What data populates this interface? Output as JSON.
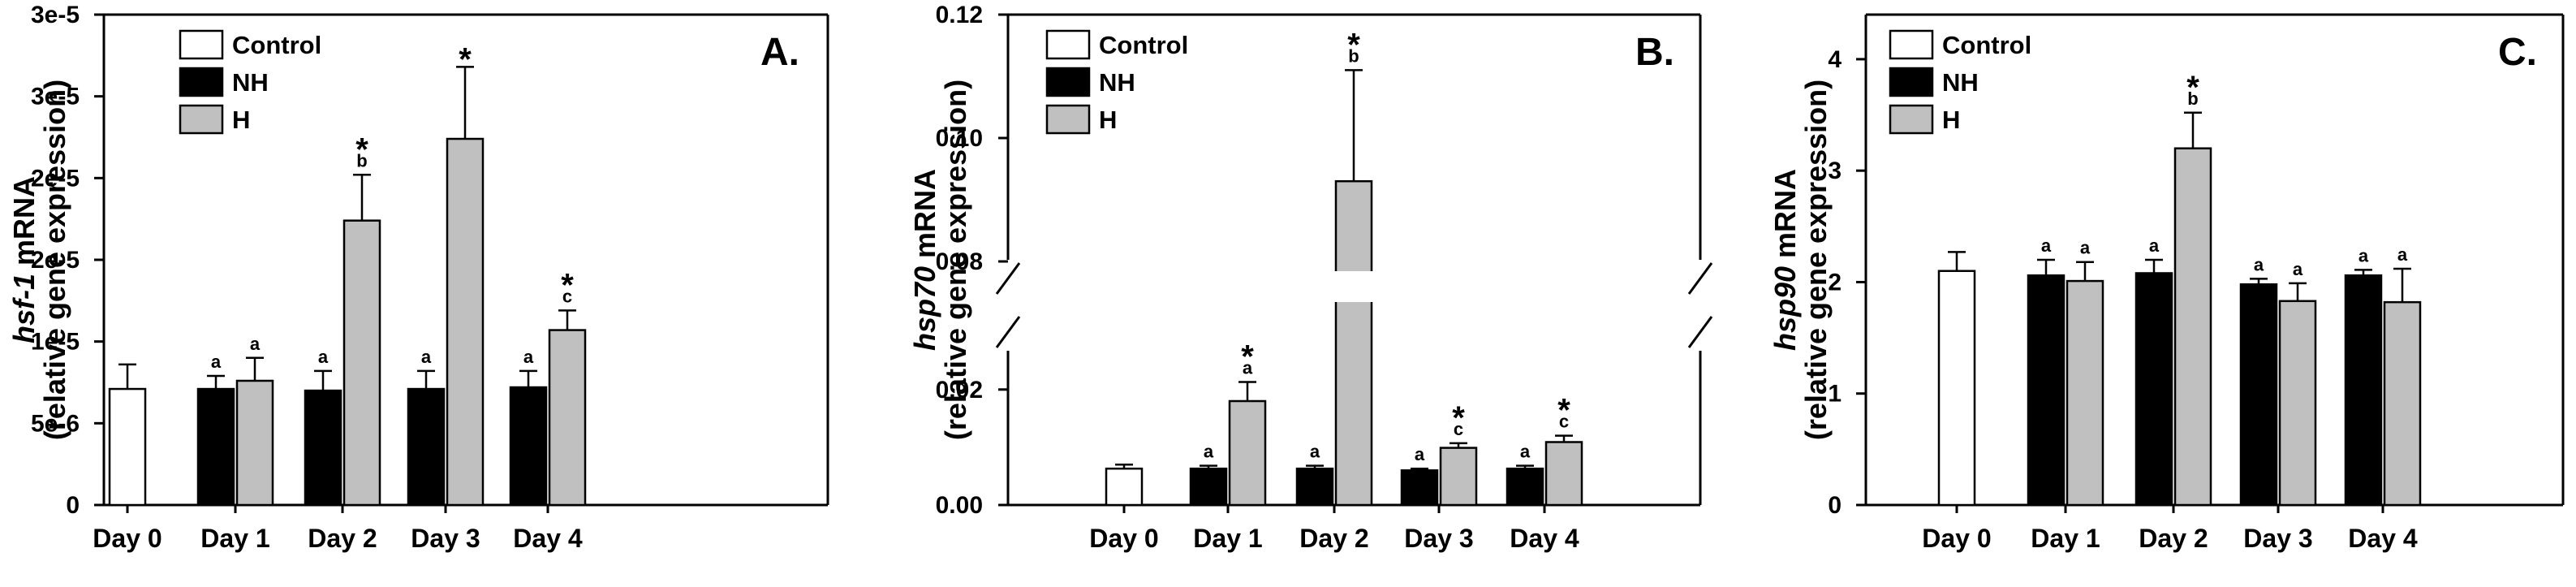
{
  "chart_data": [
    {
      "type": "bar",
      "panel_label": "A.",
      "ylabel_gene": "hsf-1",
      "ylabel_rest": " mRNA",
      "ylabel_line2": "(relative gene  expression)",
      "yticks": [
        {
          "value": 0,
          "label": "0"
        },
        {
          "value": 5e-06,
          "label": "5e-6"
        },
        {
          "value": 1e-05,
          "label": "1e-5"
        },
        {
          "value": 1.5e-05,
          "label": "2e-5"
        },
        {
          "value": 2e-05,
          "label": "2e-5"
        },
        {
          "value": 2.5e-05,
          "label": "3e-5"
        },
        {
          "value": 3e-05,
          "label": "3e-5"
        }
      ],
      "ylim": [
        0,
        3e-05
      ],
      "categories": [
        "Day 0",
        "Day 1",
        "Day 2",
        "Day 3",
        "Day 4"
      ],
      "legend": [
        "Control",
        "NH",
        "H"
      ],
      "series": [
        {
          "name": "Control",
          "values": [
            7.1e-06,
            null,
            null,
            null,
            null
          ],
          "errors": [
            1.5e-06,
            null,
            null,
            null,
            null
          ],
          "letters": [
            "",
            "",
            "",
            "",
            ""
          ],
          "stars": [
            false,
            false,
            false,
            false,
            false
          ]
        },
        {
          "name": "NH",
          "values": [
            null,
            7.1e-06,
            7e-06,
            7.1e-06,
            7.2e-06
          ],
          "errors": [
            null,
            8e-07,
            1.2e-06,
            1.1e-06,
            1e-06
          ],
          "letters": [
            "",
            "a",
            "a",
            "a",
            "a"
          ],
          "stars": [
            false,
            false,
            false,
            false,
            false
          ]
        },
        {
          "name": "H",
          "values": [
            null,
            7.6e-06,
            1.74e-05,
            2.24e-05,
            1.07e-05
          ],
          "errors": [
            null,
            1.4e-06,
            2.8e-06,
            4.4e-06,
            1.2e-06
          ],
          "letters": [
            "",
            "a",
            "b",
            "",
            "c"
          ],
          "stars": [
            false,
            false,
            true,
            true,
            true
          ]
        }
      ]
    },
    {
      "type": "bar",
      "panel_label": "B.",
      "ylabel_gene": "hsp70",
      "ylabel_rest": " mRNA",
      "ylabel_line2": "(relative gene  expression)",
      "broken_axis": true,
      "yticks": [
        {
          "value": 0,
          "label": "0.00"
        },
        {
          "value": 0.02,
          "label": "0.02"
        },
        {
          "value": 0.08,
          "label": "0.08"
        },
        {
          "value": 0.1,
          "label": "0.10"
        },
        {
          "value": 0.12,
          "label": "0.12"
        }
      ],
      "ylim_lower": [
        0,
        0.027
      ],
      "ylim_upper": [
        0.08,
        0.12
      ],
      "categories": [
        "Day 0",
        "Day 1",
        "Day 2",
        "Day 3",
        "Day 4"
      ],
      "legend": [
        "Control",
        "NH",
        "H"
      ],
      "series": [
        {
          "name": "Control",
          "values": [
            0.0063,
            null,
            null,
            null,
            null
          ],
          "errors": [
            0.0007,
            null,
            null,
            null,
            null
          ],
          "letters": [
            "",
            "",
            "",
            "",
            ""
          ],
          "stars": [
            false,
            false,
            false,
            false,
            false
          ]
        },
        {
          "name": "NH",
          "values": [
            null,
            0.0063,
            0.0063,
            0.006,
            0.0063
          ],
          "errors": [
            null,
            0.0005,
            0.0005,
            0.0003,
            0.0005
          ],
          "letters": [
            "",
            "a",
            "a",
            "a",
            "a"
          ],
          "stars": [
            false,
            false,
            false,
            false,
            false
          ]
        },
        {
          "name": "H",
          "values": [
            null,
            0.018,
            0.093,
            0.0099,
            0.0109
          ],
          "errors": [
            null,
            0.0033,
            0.018,
            0.0008,
            0.0011
          ],
          "letters": [
            "",
            "a",
            "b",
            "c",
            "c"
          ],
          "stars": [
            false,
            true,
            true,
            true,
            true
          ]
        }
      ]
    },
    {
      "type": "bar",
      "panel_label": "C.",
      "ylabel_gene": "hsp90",
      "ylabel_rest": " mRNA",
      "ylabel_line2": "(relative gene  expression)",
      "yticks": [
        {
          "value": 0,
          "label": "0"
        },
        {
          "value": 1,
          "label": "1"
        },
        {
          "value": 2,
          "label": "2"
        },
        {
          "value": 3,
          "label": "3"
        },
        {
          "value": 4,
          "label": "4"
        }
      ],
      "ylim": [
        0,
        4.4
      ],
      "categories": [
        "Day 0",
        "Day 1",
        "Day 2",
        "Day 3",
        "Day 4"
      ],
      "legend": [
        "Control",
        "NH",
        "H"
      ],
      "series": [
        {
          "name": "Control",
          "values": [
            2.1,
            null,
            null,
            null,
            null
          ],
          "errors": [
            0.17,
            null,
            null,
            null,
            null
          ],
          "letters": [
            "",
            "",
            "",
            "",
            ""
          ],
          "stars": [
            false,
            false,
            false,
            false,
            false
          ]
        },
        {
          "name": "NH",
          "values": [
            null,
            2.06,
            2.08,
            1.98,
            2.06
          ],
          "errors": [
            null,
            0.14,
            0.12,
            0.05,
            0.05
          ],
          "letters": [
            "",
            "a",
            "a",
            "a",
            "a"
          ],
          "stars": [
            false,
            false,
            false,
            false,
            false
          ]
        },
        {
          "name": "H",
          "values": [
            null,
            2.01,
            3.2,
            1.83,
            1.82
          ],
          "errors": [
            null,
            0.17,
            0.32,
            0.16,
            0.3
          ],
          "letters": [
            "",
            "a",
            "b",
            "a",
            "a"
          ],
          "stars": [
            false,
            false,
            true,
            false,
            false
          ]
        }
      ]
    }
  ]
}
